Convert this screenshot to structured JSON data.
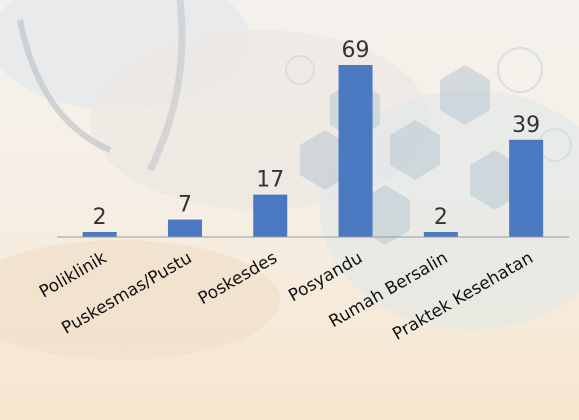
{
  "colors": {
    "bar": "#4a79c2",
    "axis": "#9a9a9a"
  },
  "chart_data": {
    "type": "bar",
    "categories": [
      "Poliklinik",
      "Puskesmas/Pustu",
      "Poskesdes",
      "Posyandu",
      "Rumah Bersalin",
      "Praktek Kesehatan"
    ],
    "values": [
      2,
      7,
      17,
      69,
      2,
      39
    ],
    "title": "",
    "xlabel": "",
    "ylabel": "",
    "ylim": [
      0,
      69
    ],
    "grid": false,
    "legend": "none",
    "data_labels": true
  }
}
